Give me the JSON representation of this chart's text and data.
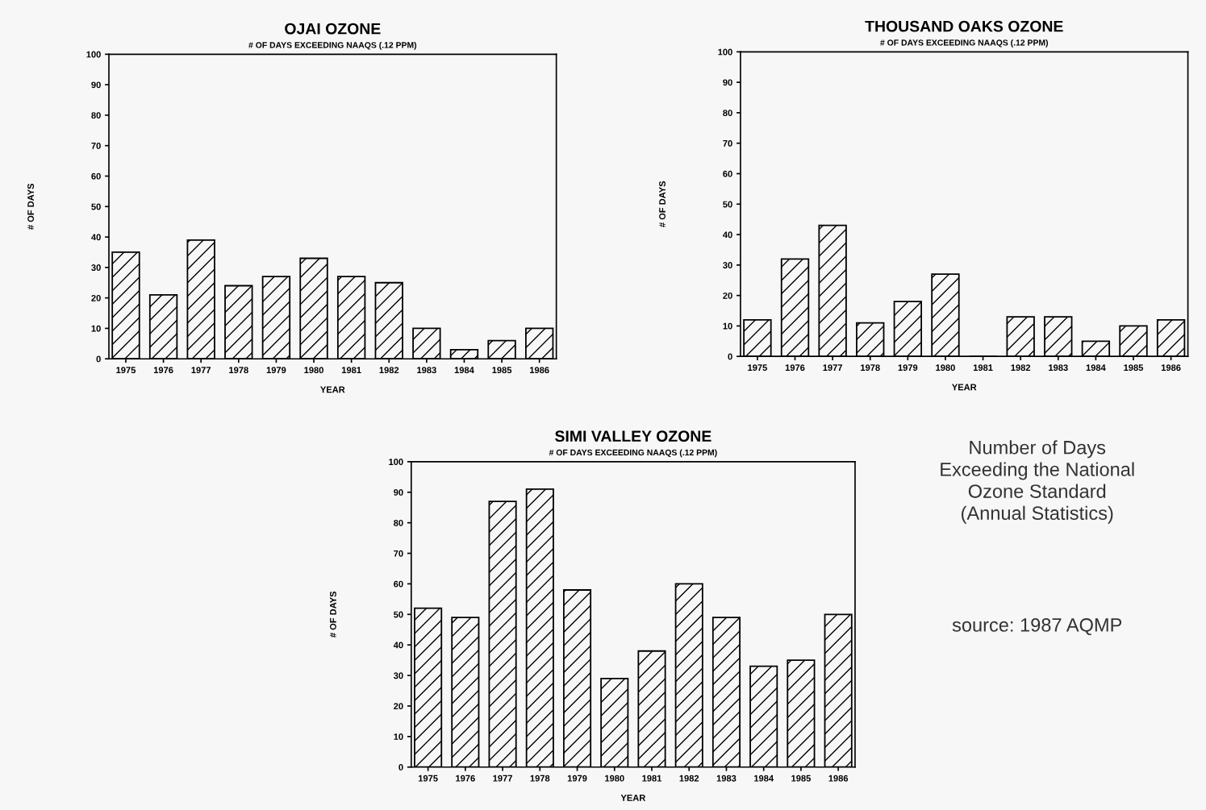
{
  "chart_data": [
    {
      "type": "bar",
      "title": "OJAI OZONE",
      "subtitle": "# OF DAYS EXCEEDING NAAQS (.12 PPM)",
      "xlabel": "YEAR",
      "ylabel": "# OF DAYS",
      "categories": [
        "1975",
        "1976",
        "1977",
        "1978",
        "1979",
        "1980",
        "1981",
        "1982",
        "1983",
        "1984",
        "1985",
        "1986"
      ],
      "values": [
        35,
        21,
        39,
        24,
        27,
        33,
        27,
        25,
        10,
        3,
        6,
        10
      ],
      "color": "#000000",
      "ylim": [
        0,
        100
      ],
      "yticks": [
        0,
        10,
        20,
        30,
        40,
        50,
        60,
        70,
        80,
        90,
        100
      ],
      "grid": false,
      "legend": false
    },
    {
      "type": "bar",
      "title": "THOUSAND OAKS OZONE",
      "subtitle": "# OF DAYS EXCEEDING NAAQS (.12 PPM)",
      "xlabel": "YEAR",
      "ylabel": "# OF DAYS",
      "categories": [
        "1975",
        "1976",
        "1977",
        "1978",
        "1979",
        "1980",
        "1981",
        "1982",
        "1983",
        "1984",
        "1985",
        "1986"
      ],
      "values": [
        12,
        32,
        43,
        11,
        18,
        27,
        0,
        13,
        13,
        5,
        10,
        12
      ],
      "color": "#000000",
      "ylim": [
        0,
        100
      ],
      "yticks": [
        0,
        10,
        20,
        30,
        40,
        50,
        60,
        70,
        80,
        90,
        100
      ],
      "grid": false,
      "legend": false
    },
    {
      "type": "bar",
      "title": "SIMI VALLEY OZONE",
      "subtitle": "# OF DAYS EXCEEDING NAAQS (.12 PPM)",
      "xlabel": "YEAR",
      "ylabel": "# OF DAYS",
      "categories": [
        "1975",
        "1976",
        "1977",
        "1978",
        "1979",
        "1980",
        "1981",
        "1982",
        "1983",
        "1984",
        "1985",
        "1986"
      ],
      "values": [
        52,
        49,
        87,
        91,
        58,
        29,
        38,
        60,
        49,
        33,
        35,
        50
      ],
      "color": "#000000",
      "ylim": [
        0,
        100
      ],
      "yticks": [
        0,
        10,
        20,
        30,
        40,
        50,
        60,
        70,
        80,
        90,
        100
      ],
      "grid": false,
      "legend": false
    },
    {
      "type": "other",
      "title": "Number of Days\nExceeding the National\nOzone Standard\n(Annual Statistics)",
      "annotations": [
        "source: 1987 AQMP"
      ]
    }
  ]
}
